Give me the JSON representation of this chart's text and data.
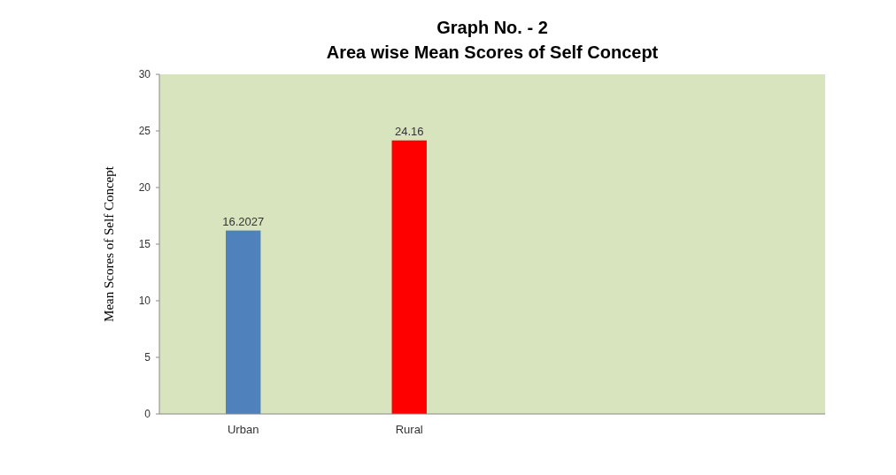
{
  "chart_data": {
    "type": "bar",
    "title": "Graph No. - 2",
    "subtitle": "Area wise Mean Scores of Self Concept",
    "ylabel": "Mean Scores of Self Concept",
    "categories": [
      "Urban",
      "Rural",
      null,
      null
    ],
    "values": [
      16.2027,
      24.16,
      null,
      null
    ],
    "colors": [
      "#4f81bd",
      "#ff0000",
      null,
      null
    ],
    "ylim": [
      0,
      30
    ],
    "yticks": [
      0,
      5,
      10,
      15,
      20,
      25,
      30
    ],
    "data_labels": true,
    "grid": false
  }
}
